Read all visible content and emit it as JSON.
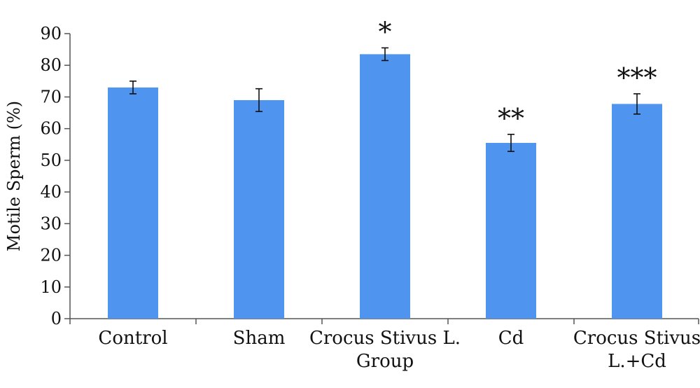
{
  "chart_data": {
    "type": "bar",
    "title": "",
    "xlabel": "",
    "ylabel": "Motile Sperm (%)",
    "ylim": [
      0,
      90
    ],
    "yticks": [
      0,
      10,
      20,
      30,
      40,
      50,
      60,
      70,
      80,
      90
    ],
    "grid": false,
    "bar_color": "#4f94ef",
    "categories": [
      [
        "Control"
      ],
      [
        "Sham"
      ],
      [
        "Crocus Stivus L.",
        "Group"
      ],
      [
        "Cd"
      ],
      [
        "Crocus Stivus",
        "L.+Cd"
      ]
    ],
    "values": [
      73,
      69,
      83.5,
      55.5,
      67.8
    ],
    "errors": [
      2,
      3.6,
      2,
      2.7,
      3.2
    ],
    "annotations": [
      "",
      "",
      "*",
      "**",
      "***"
    ]
  }
}
